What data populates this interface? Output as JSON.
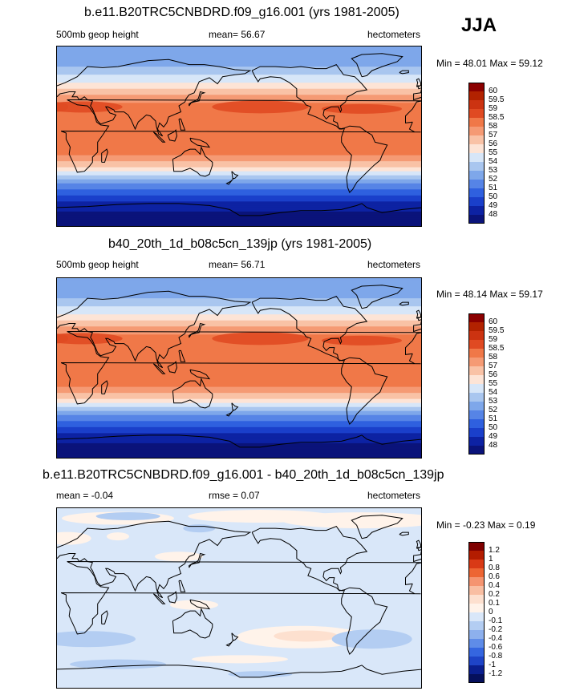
{
  "season": "JJA",
  "panels": [
    {
      "title": "b.e11.B20TRC5CNBDRD.f09_g16.001 (yrs 1981-2005)",
      "left_label": "500mb geop height",
      "center_label": "mean=  56.67",
      "right_label": "hectometers",
      "minmax": "Min =  48.01 Max =  59.12",
      "scale": "abs",
      "colorbar_labels": [
        "60",
        "59.5",
        "59",
        "58.5",
        "58",
        "57",
        "56",
        "55",
        "54",
        "53",
        "52",
        "51",
        "50",
        "49",
        "48"
      ]
    },
    {
      "title": "b40_20th_1d_b08c5cn_139jp (yrs 1981-2005)",
      "left_label": "500mb geop height",
      "center_label": "mean=  56.71",
      "right_label": "hectometers",
      "minmax": "Min =  48.14 Max =  59.17",
      "scale": "abs",
      "colorbar_labels": [
        "60",
        "59.5",
        "59",
        "58.5",
        "58",
        "57",
        "56",
        "55",
        "54",
        "53",
        "52",
        "51",
        "50",
        "49",
        "48"
      ]
    },
    {
      "title": "b.e11.B20TRC5CNBDRD.f09_g16.001 - b40_20th_1d_b08c5cn_139jp",
      "left_label": "mean =  -0.04",
      "center_label": "rmse =   0.07",
      "right_label": "hectometers",
      "minmax": "Min =  -0.23 Max =   0.19",
      "scale": "diff",
      "colorbar_labels": [
        "1.2",
        "1",
        "0.8",
        "0.6",
        "0.4",
        "0.2",
        "0.1",
        "0",
        "-0.1",
        "-0.2",
        "-0.4",
        "-0.6",
        "-0.8",
        "-1",
        "-1.2"
      ]
    }
  ],
  "colors": {
    "abs_scale": [
      "#8b0000",
      "#b22200",
      "#cc3311",
      "#e04a22",
      "#f07848",
      "#f59a74",
      "#f9c2a6",
      "#fde4d6",
      "#d7e6f8",
      "#a9c6ef",
      "#7ea7ea",
      "#5684e6",
      "#2f60df",
      "#1a3fca",
      "#0d22a3",
      "#0a137a"
    ],
    "diff_scale": [
      "#7f0000",
      "#b31c00",
      "#d93a16",
      "#ed6533",
      "#f59470",
      "#f9bea2",
      "#fde0cf",
      "#fff3ea",
      "#d9e7f9",
      "#b3cdf2",
      "#8db0ed",
      "#5f8ce8",
      "#3566e0",
      "#1e44c7",
      "#0a1f8f",
      "#05105c"
    ],
    "land_outline": "#000000"
  }
}
